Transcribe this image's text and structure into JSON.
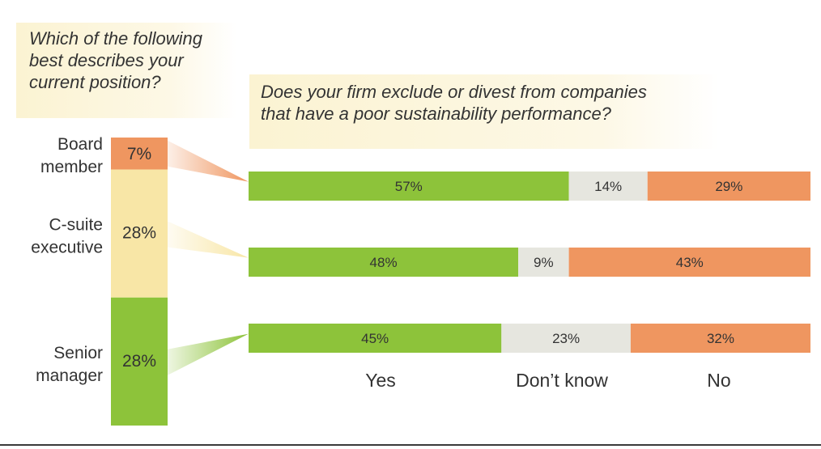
{
  "left_question": [
    "Which of the following",
    "best describes your",
    "current position?"
  ],
  "right_question": [
    "Does your firm exclude or divest from companies",
    "that have a poor sustainability performance?"
  ],
  "colors": {
    "board": "#ef9660",
    "csuite": "#f8e6a6",
    "senior": "#8dc33a",
    "yes": "#8dc33a",
    "dontknow": "#e6e6df",
    "no": "#ef9660",
    "text": "#333333"
  },
  "chart_data": [
    {
      "type": "bar",
      "orientation": "vertical-stacked",
      "title": "Which of the following best describes your current position?",
      "categories": [
        "Board member",
        "C-suite executive",
        "Senior manager"
      ],
      "labels": [
        "Board\nmember",
        "C-suite\nexecutive",
        "Senior\nmanager"
      ],
      "display_values": [
        "7%",
        "28%",
        "28%"
      ],
      "relative_heights": [
        7,
        28,
        28
      ]
    },
    {
      "type": "bar",
      "orientation": "horizontal-stacked",
      "title": "Does your firm exclude or divest from companies that have a poor sustainability performance?",
      "categories": [
        "Board member",
        "C-suite executive",
        "Senior manager"
      ],
      "series": [
        {
          "name": "Yes",
          "values": [
            57,
            48,
            45
          ]
        },
        {
          "name": "Don’t know",
          "values": [
            14,
            9,
            23
          ]
        },
        {
          "name": "No",
          "values": [
            29,
            43,
            32
          ]
        }
      ],
      "unit": "%",
      "xlim": [
        0,
        100
      ]
    }
  ]
}
